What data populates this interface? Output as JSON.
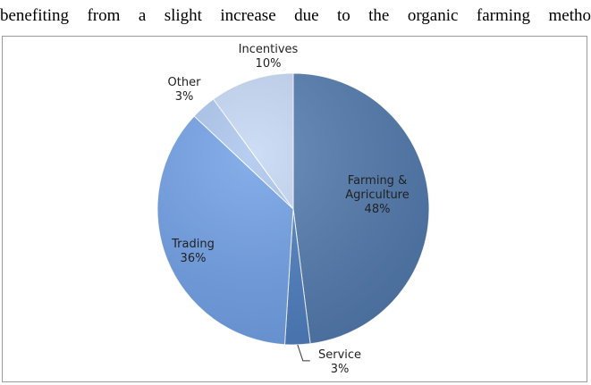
{
  "document": {
    "top_text_words": [
      "benefiting",
      "from",
      "a",
      "slight",
      "increase",
      "due",
      "to",
      "the",
      "organic",
      "farming",
      "metho"
    ]
  },
  "chart_data": {
    "type": "pie",
    "title": "",
    "slices": [
      {
        "label_lines": [
          "Farming &",
          "Agriculture"
        ],
        "percent_text": "48%",
        "value": 48,
        "color": "#4f78ad"
      },
      {
        "label_lines": [
          "Service"
        ],
        "percent_text": "3%",
        "value": 3,
        "color": "#4a7cbf"
      },
      {
        "label_lines": [
          "Trading"
        ],
        "percent_text": "36%",
        "value": 36,
        "color": "#6d9ee6"
      },
      {
        "label_lines": [
          "Other"
        ],
        "percent_text": "3%",
        "value": 3,
        "color": "#a9c4ee"
      },
      {
        "label_lines": [
          "Incentives"
        ],
        "percent_text": "10%",
        "value": 10,
        "color": "#c3d6f4"
      }
    ]
  }
}
